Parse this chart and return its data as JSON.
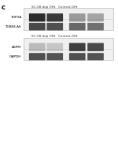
{
  "background_color": "#ffffff",
  "panel_label": "c",
  "top_header": "SC-58 dep OHt   Control-OHt",
  "bot_header": "SC-58 dep OHt   Control-OHt",
  "proteins_top": [
    "TOP2A",
    "TUBB4-Alt"
  ],
  "proteins_bot": [
    "ASPM",
    "GAPDH"
  ],
  "band_color_dark": "#111111",
  "band_color_mid": "#333333",
  "band_color_light": "#666666",
  "box_edge_color": "#aaaaaa",
  "box_bg_color": "#f0f0f0"
}
